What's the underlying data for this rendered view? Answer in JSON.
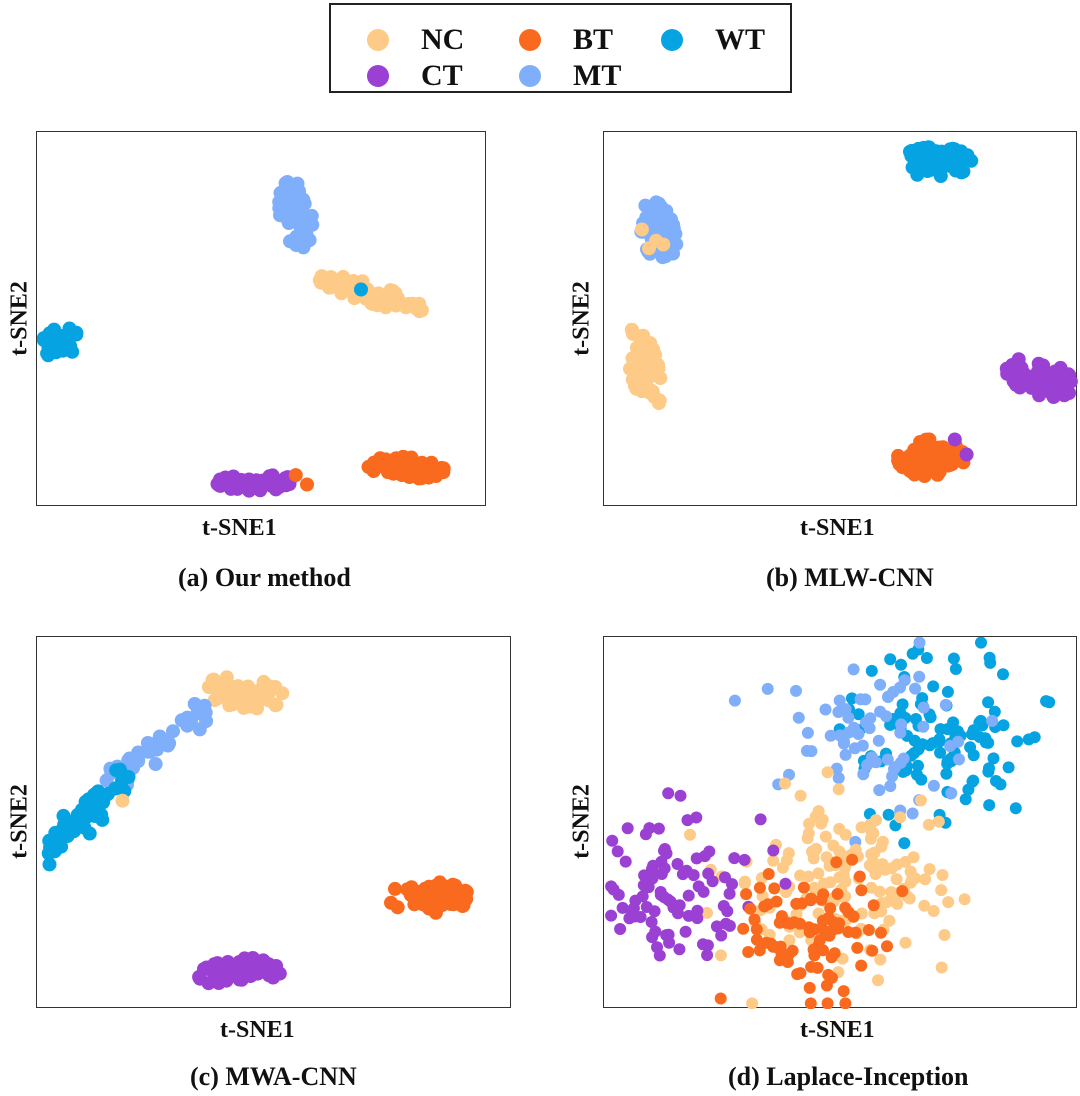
{
  "colors": {
    "NC": "#fdca87",
    "BT": "#fa6a1e",
    "WT": "#05a3e2",
    "CT": "#9a40d3",
    "MT": "#7faefa"
  },
  "legend": {
    "items": [
      {
        "key": "NC",
        "label": "NC"
      },
      {
        "key": "BT",
        "label": "BT"
      },
      {
        "key": "WT",
        "label": "WT"
      },
      {
        "key": "CT",
        "label": "CT"
      },
      {
        "key": "MT",
        "label": "MT"
      }
    ]
  },
  "chart_data": [
    {
      "type": "scatter",
      "caption": "(a) Our method",
      "xlabel": "t-SNE1",
      "ylabel": "t-SNE2",
      "xlim": [
        0,
        100
      ],
      "ylim": [
        0,
        100
      ],
      "grid": false,
      "clusters": [
        {
          "cls": "MT",
          "shape": "blob",
          "cx": 57.5,
          "cy": 78,
          "rx": 3.5,
          "ry": 9,
          "angle": 8,
          "n": 55
        },
        {
          "cls": "NC",
          "shape": "blob",
          "cx": 74,
          "cy": 57,
          "rx": 12.5,
          "ry": 2.5,
          "angle": -20,
          "n": 70
        },
        {
          "cls": "WT",
          "shape": "blob",
          "cx": 5,
          "cy": 44,
          "rx": 5.5,
          "ry": 3.5,
          "angle": 15,
          "n": 50
        },
        {
          "cls": "CT",
          "shape": "blob",
          "cx": 49,
          "cy": 6.5,
          "rx": 9,
          "ry": 2.2,
          "angle": 0,
          "n": 60
        },
        {
          "cls": "BT",
          "shape": "blob",
          "cx": 82,
          "cy": 10.5,
          "rx": 8.5,
          "ry": 2.8,
          "angle": -5,
          "n": 60
        },
        {
          "cls": "BT",
          "shape": "points",
          "x": [
            57.5,
            60
          ],
          "y": [
            8.5,
            6
          ]
        },
        {
          "cls": "WT",
          "shape": "points",
          "x": [
            72
          ],
          "y": [
            58
          ]
        }
      ]
    },
    {
      "type": "scatter",
      "caption": "(b) MLW-CNN",
      "xlabel": "t-SNE1",
      "ylabel": "t-SNE2",
      "xlim": [
        0,
        100
      ],
      "ylim": [
        0,
        100
      ],
      "grid": false,
      "clusters": [
        {
          "cls": "WT",
          "shape": "blob",
          "cx": 70,
          "cy": 92,
          "rx": 7.5,
          "ry": 4,
          "angle": 0,
          "n": 60
        },
        {
          "cls": "MT",
          "shape": "blob",
          "cx": 11.5,
          "cy": 73,
          "rx": 3.5,
          "ry": 8.5,
          "angle": 10,
          "n": 55
        },
        {
          "cls": "NC",
          "shape": "blob",
          "cx": 8.5,
          "cy": 37,
          "rx": 3,
          "ry": 11,
          "angle": 10,
          "n": 55
        },
        {
          "cls": "CT",
          "shape": "blob",
          "cx": 92,
          "cy": 34.5,
          "rx": 7.5,
          "ry": 4.5,
          "angle": -25,
          "n": 65
        },
        {
          "cls": "BT",
          "shape": "blob",
          "cx": 69,
          "cy": 13,
          "rx": 7,
          "ry": 5,
          "angle": 0,
          "n": 75
        },
        {
          "cls": "CT",
          "shape": "points",
          "x": [
            74,
            76.5
          ],
          "y": [
            18,
            14
          ]
        },
        {
          "cls": "NC",
          "shape": "points",
          "x": [
            8,
            11,
            12.5,
            9.5
          ],
          "y": [
            74,
            71,
            70,
            69
          ]
        }
      ]
    },
    {
      "type": "scatter",
      "caption": "(c) MWA-CNN",
      "xlabel": "t-SNE1",
      "ylabel": "t-SNE2",
      "xlim": [
        0,
        100
      ],
      "ylim": [
        0,
        100
      ],
      "grid": false,
      "clusters": [
        {
          "cls": "NC",
          "shape": "blob",
          "cx": 43.5,
          "cy": 85,
          "rx": 8.5,
          "ry": 4,
          "angle": -10,
          "n": 60
        },
        {
          "cls": "MT",
          "shape": "curve",
          "x0": 16,
          "y0": 63,
          "x1": 36,
          "y1": 80,
          "spread": 2.5,
          "n": 45
        },
        {
          "cls": "WT",
          "shape": "curve",
          "x0": 3,
          "y0": 42,
          "x1": 18,
          "y1": 63,
          "spread": 2.6,
          "n": 50
        },
        {
          "cls": "BT",
          "shape": "blob",
          "cx": 82.5,
          "cy": 30,
          "rx": 8.5,
          "ry": 4.2,
          "angle": 0,
          "n": 60
        },
        {
          "cls": "CT",
          "shape": "blob",
          "cx": 43,
          "cy": 10,
          "rx": 9,
          "ry": 3.5,
          "angle": 8,
          "n": 55
        },
        {
          "cls": "NC",
          "shape": "points",
          "x": [
            18
          ],
          "y": [
            56
          ]
        }
      ]
    },
    {
      "type": "scatter",
      "caption": "(d) Laplace-Inception",
      "xlabel": "t-SNE1",
      "ylabel": "t-SNE2",
      "xlim": [
        0,
        100
      ],
      "ylim": [
        0,
        100
      ],
      "grid": false,
      "clusters": [
        {
          "cls": "WT",
          "shape": "scatter",
          "cx": 71,
          "cy": 73,
          "rx": 18,
          "ry": 18,
          "n": 110
        },
        {
          "cls": "MT",
          "shape": "scatter",
          "cx": 57,
          "cy": 74,
          "rx": 17,
          "ry": 17,
          "n": 70
        },
        {
          "cls": "NC",
          "shape": "scatter",
          "cx": 53,
          "cy": 37,
          "rx": 18,
          "ry": 19,
          "n": 150
        },
        {
          "cls": "CT",
          "shape": "scatter",
          "cx": 15,
          "cy": 32,
          "rx": 14,
          "ry": 17,
          "n": 90
        },
        {
          "cls": "BT",
          "shape": "scatter",
          "cx": 44,
          "cy": 21,
          "rx": 14,
          "ry": 14,
          "n": 90
        }
      ]
    }
  ]
}
